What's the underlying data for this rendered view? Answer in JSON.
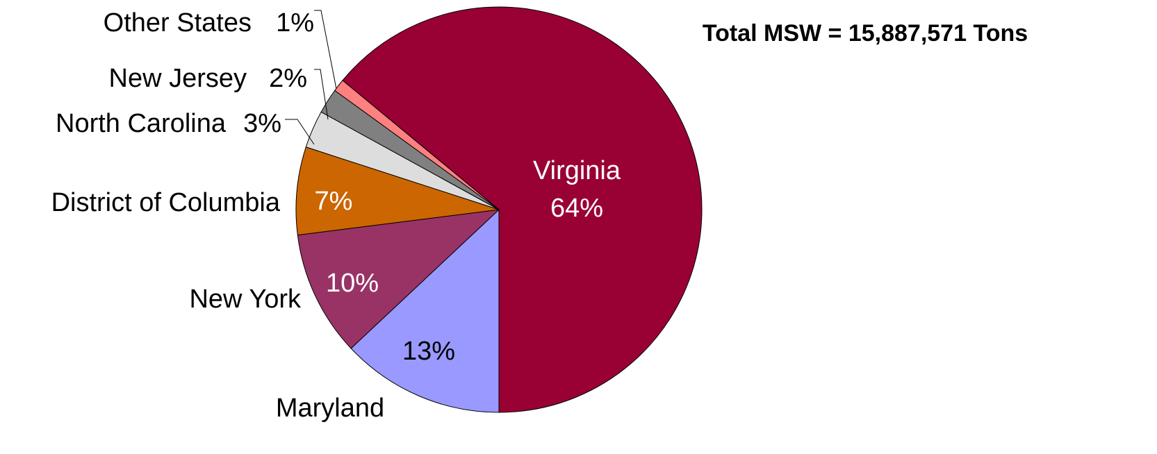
{
  "chart_data": {
    "type": "pie",
    "title": "Total MSW = 15,887,571 Tons",
    "categories": [
      "Virginia",
      "Maryland",
      "New York",
      "District of Columbia",
      "North Carolina",
      "New Jersey",
      "Other States"
    ],
    "values": [
      64,
      13,
      10,
      7,
      3,
      2,
      1
    ],
    "value_labels": [
      "64%",
      "13%",
      "10%",
      "7%",
      "3%",
      "2%",
      "1%"
    ],
    "colors": [
      "#990033",
      "#9999ff",
      "#993366",
      "#cc6600",
      "#dddddd",
      "#808080",
      "#ff8080"
    ]
  }
}
